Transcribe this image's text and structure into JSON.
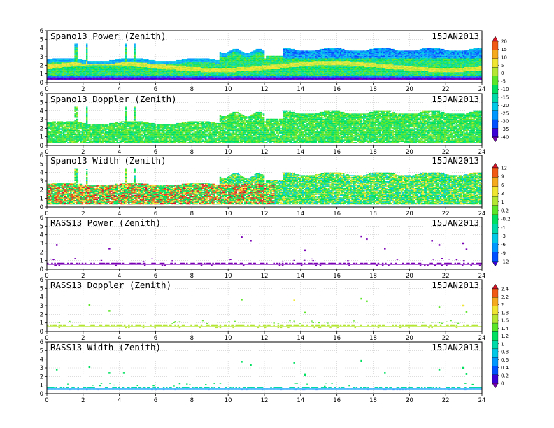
{
  "date_label": "15JAN2013",
  "chart_data": [
    {
      "type": "heatmap",
      "title": "Spano13 Power (Zenith)",
      "date": "15JAN2013",
      "xlim": [
        0,
        24
      ],
      "ylim": [
        0,
        6
      ],
      "xticks": [
        0,
        2,
        4,
        6,
        8,
        10,
        12,
        14,
        16,
        18,
        20,
        22,
        24
      ],
      "yticks": [
        0,
        1,
        2,
        3,
        4,
        5,
        6
      ],
      "grid": true,
      "colorbar": {
        "ticks": [
          "20",
          "15",
          "10",
          "5",
          "0",
          "-5",
          "-10",
          "-15",
          "-20",
          "-25",
          "-30",
          "-35",
          "-40"
        ]
      },
      "summary": {
        "typical_value_range": [
          -15,
          5
        ],
        "max_height": 3.8
      }
    },
    {
      "type": "heatmap",
      "title": "Spano13 Doppler (Zenith)",
      "date": "15JAN2013",
      "xlim": [
        0,
        24
      ],
      "ylim": [
        0,
        6
      ],
      "xticks": [
        0,
        2,
        4,
        6,
        8,
        10,
        12,
        14,
        16,
        18,
        20,
        22,
        24
      ],
      "yticks": [
        0,
        1,
        2,
        3,
        4,
        5,
        6
      ],
      "grid": true,
      "summary": {
        "typical_value_range": [
          -15,
          -5
        ],
        "max_height": 3.8
      }
    },
    {
      "type": "heatmap",
      "title": "Spano13 Width (Zenith)",
      "date": "15JAN2013",
      "xlim": [
        0,
        24
      ],
      "ylim": [
        0,
        6
      ],
      "xticks": [
        0,
        2,
        4,
        6,
        8,
        10,
        12,
        14,
        16,
        18,
        20,
        22,
        24
      ],
      "yticks": [
        0,
        1,
        2,
        3,
        4,
        5,
        6
      ],
      "grid": true,
      "colorbar": {
        "ticks": [
          "12",
          "9",
          "6",
          "3",
          "1",
          "0.2",
          "-0.2",
          "-1",
          "-3",
          "-6",
          "-9",
          "-12"
        ]
      },
      "summary": {
        "typical_value_range": [
          -3,
          12
        ],
        "max_height": 3.8
      }
    },
    {
      "type": "heatmap",
      "title": "RASS13 Power (Zenith)",
      "date": "15JAN2013",
      "xlim": [
        0,
        24
      ],
      "ylim": [
        0,
        6
      ],
      "xticks": [
        0,
        2,
        4,
        6,
        8,
        10,
        12,
        14,
        16,
        18,
        20,
        22,
        24
      ],
      "yticks": [
        0,
        1,
        2,
        3,
        4,
        5,
        6
      ],
      "grid": true,
      "summary": {
        "typical_value_range": [
          -12,
          -9
        ],
        "main_band_height": 0.6
      }
    },
    {
      "type": "heatmap",
      "title": "RASS13 Doppler (Zenith)",
      "date": "15JAN2013",
      "xlim": [
        0,
        24
      ],
      "ylim": [
        0,
        6
      ],
      "xticks": [
        0,
        2,
        4,
        6,
        8,
        10,
        12,
        14,
        16,
        18,
        20,
        22,
        24
      ],
      "yticks": [
        0,
        1,
        2,
        3,
        4,
        5,
        6
      ],
      "grid": true,
      "colorbar": {
        "ticks": [
          "2.4",
          "2.2",
          "2",
          "1.8",
          "1.6",
          "1.4",
          "1.2",
          "1",
          "0.8",
          "0.6",
          "0.4",
          "0.2",
          "0"
        ]
      },
      "summary": {
        "typical_value_range": [
          1.2,
          1.6
        ],
        "main_band_height": 0.6
      }
    },
    {
      "type": "heatmap",
      "title": "RASS13 Width (Zenith)",
      "date": "15JAN2013",
      "xlim": [
        0,
        24
      ],
      "ylim": [
        0,
        6
      ],
      "xticks": [
        0,
        2,
        4,
        6,
        8,
        10,
        12,
        14,
        16,
        18,
        20,
        22,
        24
      ],
      "yticks": [
        0,
        1,
        2,
        3,
        4,
        5,
        6
      ],
      "grid": true,
      "summary": {
        "typical_value_range": [
          0.4,
          1.2
        ],
        "main_band_height": 0.6
      }
    }
  ]
}
